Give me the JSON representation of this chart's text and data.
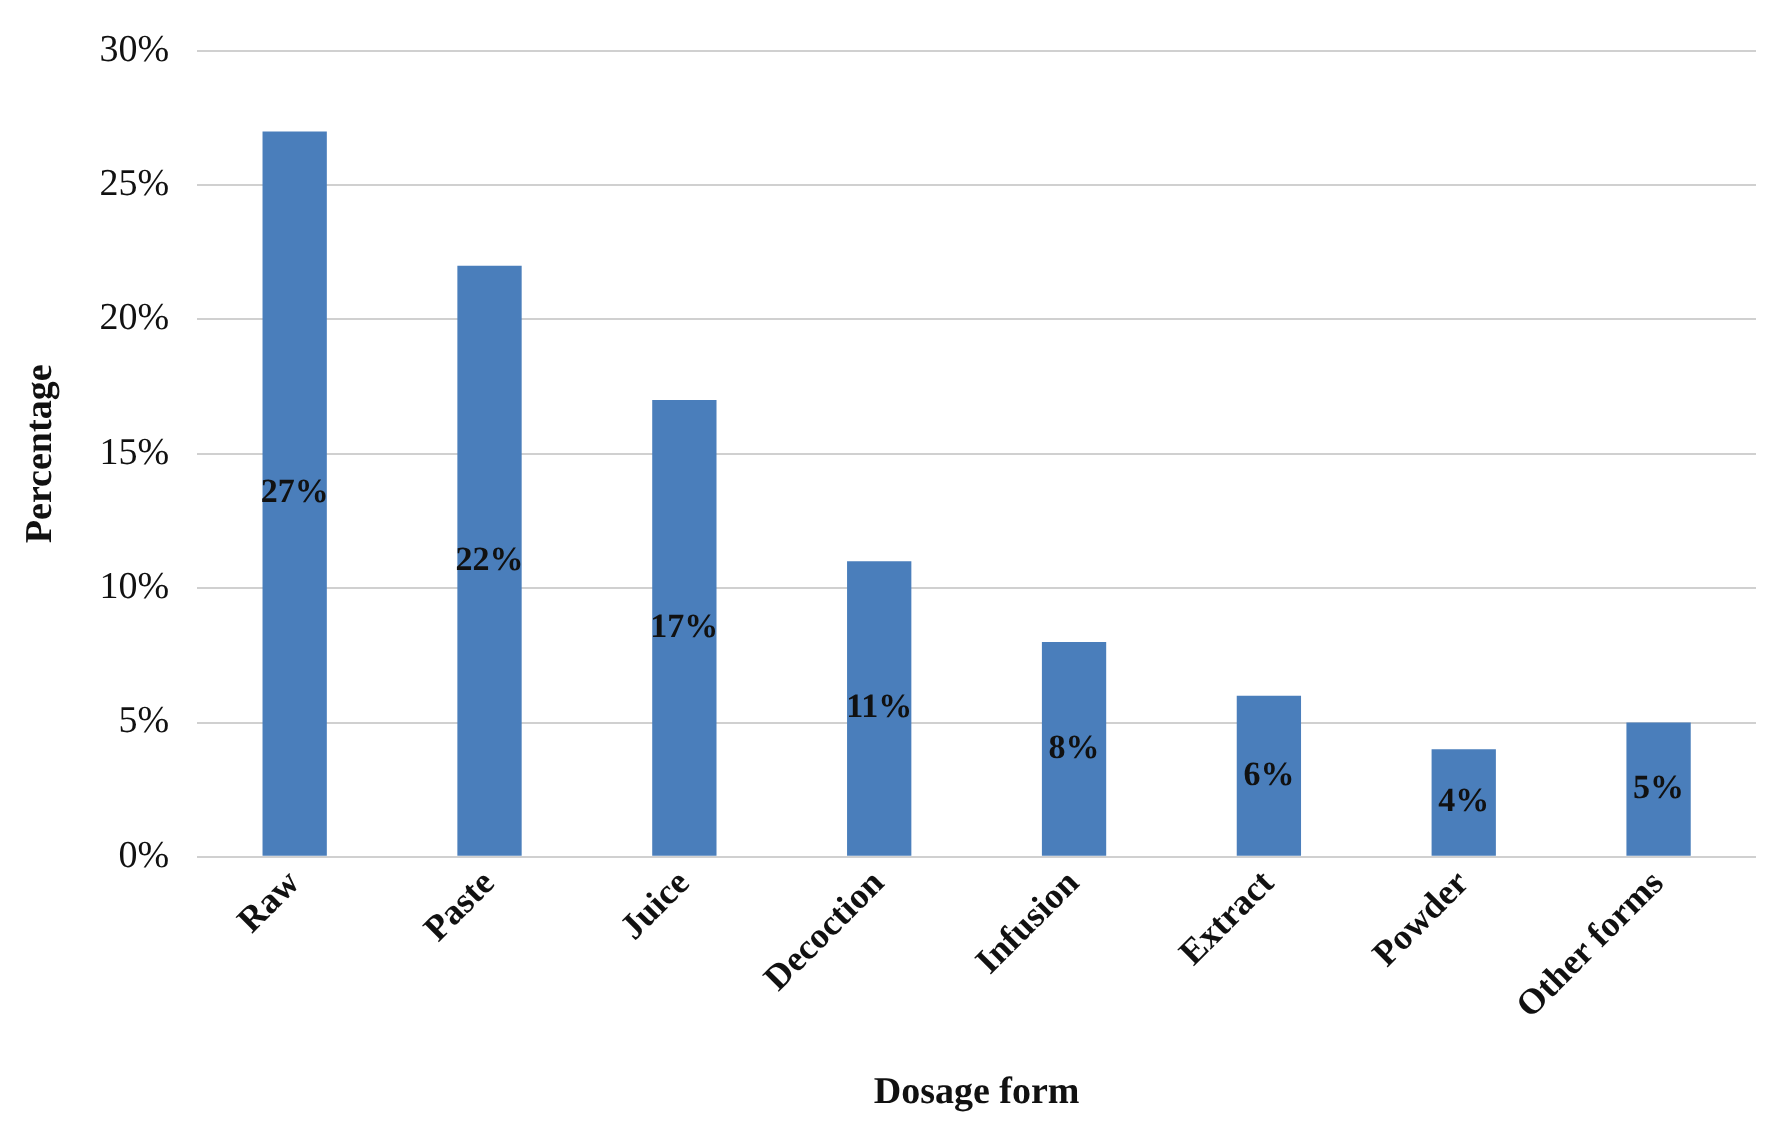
{
  "chart_data": {
    "type": "bar",
    "xlabel": "Dosage form",
    "ylabel": "Percentage",
    "categories": [
      "Raw",
      "Paste",
      "Juice",
      "Decoction",
      "Infusion",
      "Extract",
      "Powder",
      "Other forms"
    ],
    "values": [
      27,
      22,
      17,
      11,
      8,
      6,
      4,
      5
    ],
    "value_labels": [
      "27%",
      "22%",
      "17%",
      "11%",
      "8%",
      "6%",
      "4%",
      "5%"
    ],
    "color": "#4a7ebb",
    "ylim": [
      0,
      30
    ],
    "yticks": [
      {
        "value": 0,
        "label": "0%"
      },
      {
        "value": 5,
        "label": "5%"
      },
      {
        "value": 10,
        "label": "10%"
      },
      {
        "value": 15,
        "label": "15%"
      },
      {
        "value": 20,
        "label": "20%"
      },
      {
        "value": 25,
        "label": "25%"
      },
      {
        "value": 30,
        "label": "30%"
      }
    ],
    "grid": "y",
    "legend": false
  }
}
